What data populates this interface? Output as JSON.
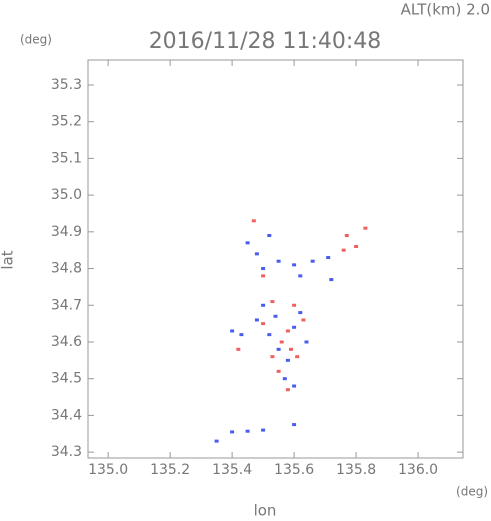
{
  "chart_data": {
    "type": "scatter",
    "title": "2016/11/28 11:40:48",
    "altitude_label": "ALT(km) 2.0",
    "y_unit": "(deg)",
    "x_unit": "(deg)",
    "ylabel": "lat",
    "xlabel": "lon",
    "xlim": [
      134.935,
      136.145
    ],
    "ylim": [
      34.284,
      35.368
    ],
    "xticks": [
      {
        "value": 135,
        "label": "135.0"
      },
      {
        "value": 135.2,
        "label": "135.2"
      },
      {
        "value": 135.4,
        "label": "135.4"
      },
      {
        "value": 135.6,
        "label": "135.6"
      },
      {
        "value": 135.8,
        "label": "135.8"
      },
      {
        "value": 136,
        "label": "136.0"
      }
    ],
    "yticks": [
      34.3,
      34.4,
      34.5,
      34.6,
      34.7,
      34.8,
      34.9,
      {
        "value": 35,
        "label": "35.0"
      },
      35.1,
      35.2,
      35.3
    ],
    "series": [
      {
        "color": "#4a5cf0",
        "x": [
          135.35,
          135.4,
          135.45,
          135.5,
          135.6,
          135.4,
          135.43,
          135.48,
          135.5,
          135.52,
          135.55,
          135.58,
          135.6,
          135.62,
          135.57,
          135.6,
          135.54,
          135.64,
          135.45,
          135.48,
          135.5,
          135.52,
          135.55,
          135.6,
          135.62,
          135.66,
          135.71,
          135.72
        ],
        "values": [
          34.33,
          34.355,
          34.357,
          34.36,
          34.375,
          34.63,
          34.62,
          34.66,
          34.7,
          34.62,
          34.58,
          34.55,
          34.64,
          34.68,
          34.5,
          34.48,
          34.67,
          34.6,
          34.87,
          34.84,
          34.8,
          34.89,
          34.82,
          34.81,
          34.78,
          34.82,
          34.83,
          34.77
        ]
      },
      {
        "color": "#f06060",
        "x": [
          135.42,
          135.5,
          135.53,
          135.56,
          135.58,
          135.55,
          135.59,
          135.61,
          135.58,
          135.63,
          135.53,
          135.47,
          135.5,
          135.76,
          135.8,
          135.83,
          135.77,
          135.6
        ],
        "values": [
          34.58,
          34.65,
          34.71,
          34.6,
          34.63,
          34.52,
          34.58,
          34.56,
          34.47,
          34.66,
          34.56,
          34.93,
          34.78,
          34.85,
          34.86,
          34.91,
          34.89,
          34.7
        ]
      }
    ]
  }
}
